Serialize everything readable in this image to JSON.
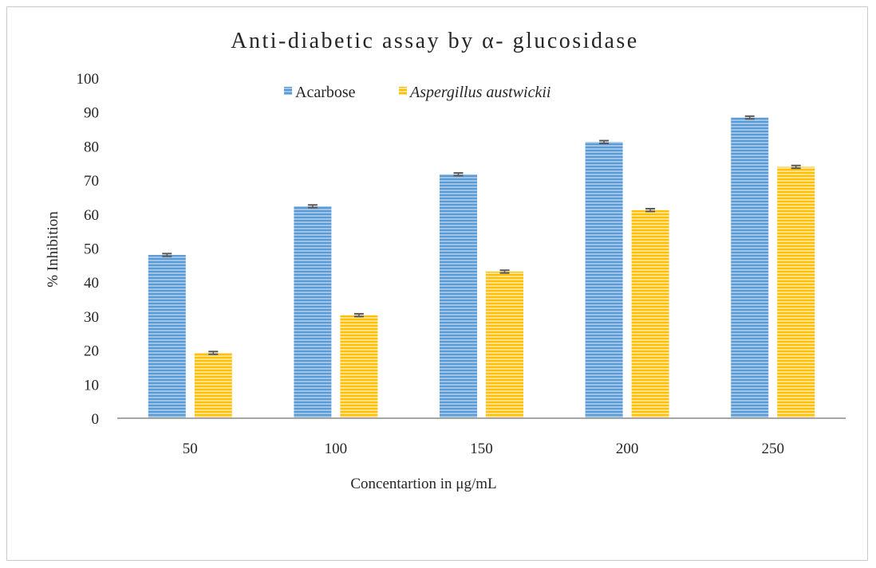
{
  "chart_data": {
    "type": "bar",
    "title": "Anti-diabetic assay by α- glucosidase",
    "xlabel": "Concentartion in μg/mL",
    "ylabel": "% Inhibition",
    "categories": [
      "50",
      "100",
      "150",
      "200",
      "250"
    ],
    "series": [
      {
        "name": "Acarbose",
        "values": [
          48,
          62.3,
          71.7,
          81.2,
          88.4
        ],
        "error": [
          0.4,
          0.4,
          0.4,
          0.4,
          0.4
        ],
        "color": "#5b9bd5"
      },
      {
        "name": "Aspergillus austwickii",
        "values": [
          19.2,
          30.3,
          43.1,
          61.2,
          73.9
        ],
        "error": [
          0.4,
          0.4,
          0.4,
          0.4,
          0.4
        ],
        "color": "#ffc000"
      }
    ],
    "ylim": [
      0,
      100
    ],
    "yticks": [
      0,
      10,
      20,
      30,
      40,
      50,
      60,
      70,
      80,
      90,
      100
    ],
    "legend_position": "top",
    "grid": false
  }
}
